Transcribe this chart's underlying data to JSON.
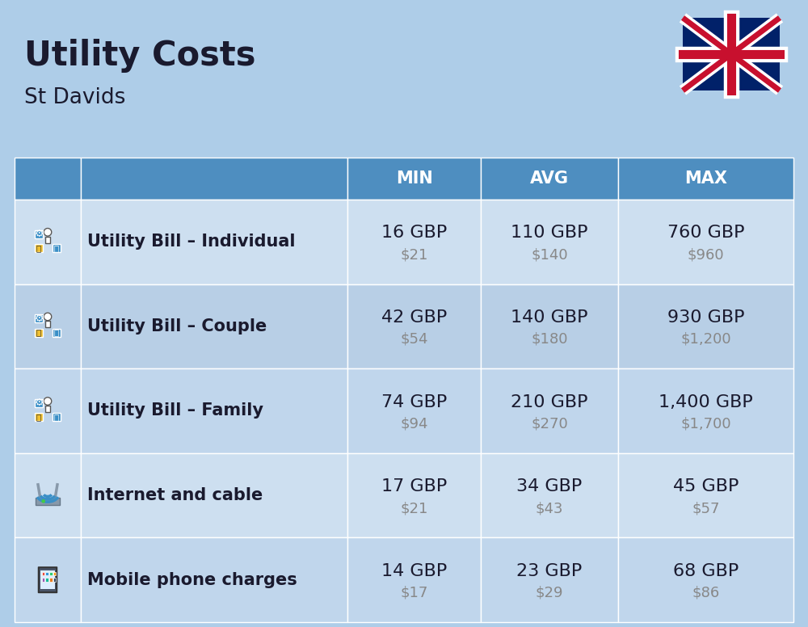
{
  "title": "Utility Costs",
  "subtitle": "St Davids",
  "background_color": "#aecde8",
  "header_bg_color": "#4e8ec0",
  "row_bg_light": "#cddff0",
  "row_bg_dark": "#b8cfe6",
  "header_text_color": "#ffffff",
  "header_labels": [
    "MIN",
    "AVG",
    "MAX"
  ],
  "rows": [
    {
      "label": "Utility Bill – Individual",
      "min_gbp": "16 GBP",
      "min_usd": "$21",
      "avg_gbp": "110 GBP",
      "avg_usd": "$140",
      "max_gbp": "760 GBP",
      "max_usd": "$960"
    },
    {
      "label": "Utility Bill – Couple",
      "min_gbp": "42 GBP",
      "min_usd": "$54",
      "avg_gbp": "140 GBP",
      "avg_usd": "$180",
      "max_gbp": "930 GBP",
      "max_usd": "$1,200"
    },
    {
      "label": "Utility Bill – Family",
      "min_gbp": "74 GBP",
      "min_usd": "$94",
      "avg_gbp": "210 GBP",
      "avg_usd": "$270",
      "max_gbp": "1,400 GBP",
      "max_usd": "$1,700"
    },
    {
      "label": "Internet and cable",
      "min_gbp": "17 GBP",
      "min_usd": "$21",
      "avg_gbp": "34 GBP",
      "avg_usd": "$43",
      "max_gbp": "45 GBP",
      "max_usd": "$57"
    },
    {
      "label": "Mobile phone charges",
      "min_gbp": "14 GBP",
      "min_usd": "$17",
      "avg_gbp": "23 GBP",
      "avg_usd": "$29",
      "max_gbp": "68 GBP",
      "max_usd": "$86"
    }
  ],
  "title_fontsize": 30,
  "subtitle_fontsize": 19,
  "header_fontsize": 15,
  "label_fontsize": 15,
  "value_fontsize": 16,
  "usd_fontsize": 13,
  "row_colors": [
    "#cddff0",
    "#b8cfe6",
    "#c0d6ec",
    "#cddff0",
    "#c0d6ec"
  ]
}
